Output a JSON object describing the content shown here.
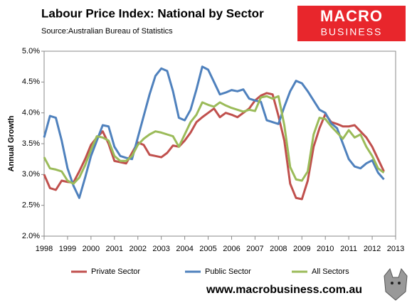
{
  "chart_data": {
    "type": "line",
    "title": "Labour Price Index: National by Sector",
    "subtitle": "Source:Australian Bureau of Statistics",
    "y_label": "Annual Growth",
    "x": [
      1998,
      1998.25,
      1998.5,
      1998.75,
      1999,
      1999.25,
      1999.5,
      1999.75,
      2000,
      2000.25,
      2000.5,
      2000.75,
      2001,
      2001.25,
      2001.5,
      2001.75,
      2002,
      2002.25,
      2002.5,
      2002.75,
      2003,
      2003.25,
      2003.5,
      2003.75,
      2004,
      2004.25,
      2004.5,
      2004.75,
      2005,
      2005.25,
      2005.5,
      2005.75,
      2006,
      2006.25,
      2006.5,
      2006.75,
      2007,
      2007.25,
      2007.5,
      2007.75,
      2008,
      2008.25,
      2008.5,
      2008.75,
      2009,
      2009.25,
      2009.5,
      2009.75,
      2010,
      2010.25,
      2010.5,
      2010.75,
      2011,
      2011.25,
      2011.5,
      2011.75,
      2012,
      2012.25,
      2012.5
    ],
    "series": [
      {
        "name": "Private Sector",
        "color": "#c0504d",
        "values": [
          3.0,
          2.78,
          2.75,
          2.9,
          2.88,
          2.87,
          3.05,
          3.25,
          3.48,
          3.6,
          3.7,
          3.5,
          3.22,
          3.2,
          3.18,
          3.35,
          3.52,
          3.48,
          3.32,
          3.3,
          3.28,
          3.35,
          3.47,
          3.45,
          3.55,
          3.68,
          3.85,
          3.93,
          4.0,
          4.07,
          3.93,
          4.0,
          3.97,
          3.93,
          4.0,
          4.07,
          4.2,
          4.28,
          4.32,
          4.3,
          3.95,
          3.55,
          2.85,
          2.62,
          2.6,
          2.9,
          3.45,
          3.75,
          3.98,
          3.85,
          3.82,
          3.78,
          3.78,
          3.8,
          3.7,
          3.6,
          3.45,
          3.25,
          3.05
        ]
      },
      {
        "name": "Public Sector",
        "color": "#4f81bd",
        "values": [
          3.6,
          3.95,
          3.92,
          3.55,
          3.1,
          2.82,
          2.62,
          2.95,
          3.3,
          3.55,
          3.8,
          3.78,
          3.45,
          3.3,
          3.27,
          3.25,
          3.6,
          3.95,
          4.3,
          4.6,
          4.72,
          4.68,
          4.35,
          3.92,
          3.88,
          4.05,
          4.38,
          4.75,
          4.7,
          4.5,
          4.3,
          4.33,
          4.37,
          4.35,
          4.38,
          4.23,
          4.2,
          4.18,
          3.88,
          3.85,
          3.82,
          4.1,
          4.35,
          4.52,
          4.48,
          4.35,
          4.2,
          4.05,
          4.0,
          3.83,
          3.75,
          3.5,
          3.25,
          3.13,
          3.1,
          3.18,
          3.23,
          3.03,
          2.92
        ]
      },
      {
        "name": "All Sectors",
        "color": "#9bbb59",
        "values": [
          3.28,
          3.1,
          3.08,
          3.05,
          2.9,
          2.85,
          2.95,
          3.15,
          3.4,
          3.62,
          3.6,
          3.55,
          3.3,
          3.22,
          3.22,
          3.3,
          3.48,
          3.58,
          3.65,
          3.7,
          3.68,
          3.65,
          3.62,
          3.45,
          3.65,
          3.85,
          3.97,
          4.17,
          4.13,
          4.1,
          4.17,
          4.12,
          4.08,
          4.05,
          4.02,
          4.05,
          4.03,
          4.25,
          4.27,
          4.23,
          4.27,
          3.8,
          3.12,
          2.92,
          2.9,
          3.05,
          3.65,
          3.92,
          3.9,
          3.78,
          3.68,
          3.58,
          3.72,
          3.6,
          3.65,
          3.45,
          3.3,
          3.1,
          3.03
        ]
      }
    ],
    "xlim": [
      1998,
      2013
    ],
    "xticks": [
      1998,
      1999,
      2000,
      2001,
      2002,
      2003,
      2004,
      2005,
      2006,
      2007,
      2008,
      2009,
      2010,
      2011,
      2012,
      2013
    ],
    "ylim": [
      2,
      5
    ],
    "yticks": [
      {
        "value": 2.0,
        "label": "2.0%"
      },
      {
        "value": 2.5,
        "label": "2.5%"
      },
      {
        "value": 3.0,
        "label": "3.0%"
      },
      {
        "value": 3.5,
        "label": "3.5%"
      },
      {
        "value": 4.0,
        "label": "4.0%"
      },
      {
        "value": 4.5,
        "label": "4.5%"
      },
      {
        "value": 5.0,
        "label": "5.0%"
      }
    ],
    "grid": false,
    "legend": "bottom"
  },
  "logo": {
    "line1": "MACRO",
    "line2": "BUSINESS"
  },
  "website": "www.macrobusiness.com.au"
}
